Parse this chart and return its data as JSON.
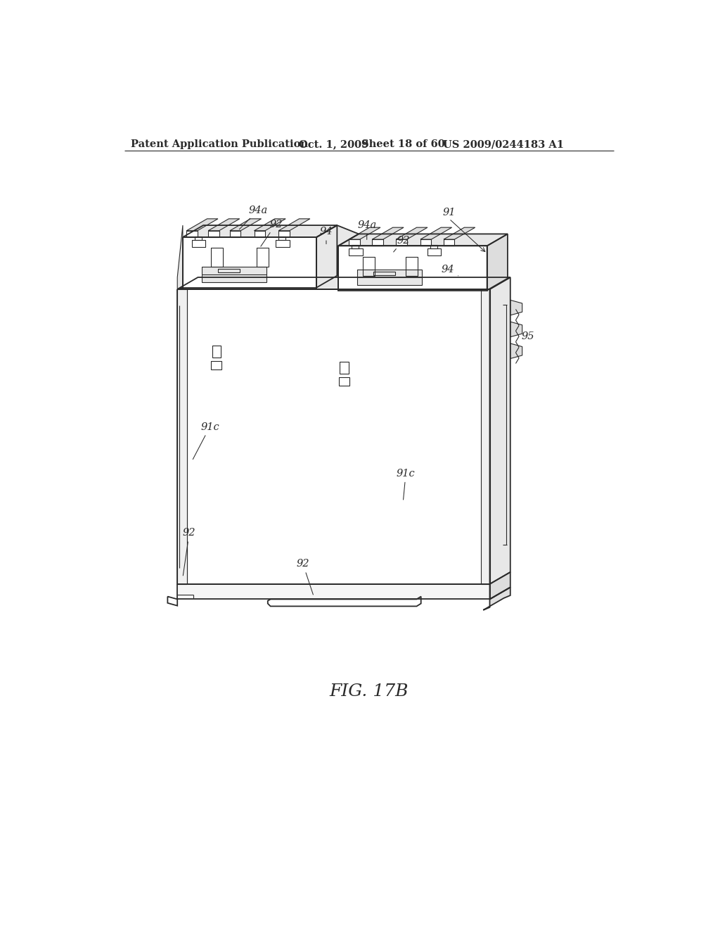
{
  "background_color": "#ffffff",
  "header_text": "Patent Application Publication",
  "header_date": "Oct. 1, 2009",
  "header_sheet": "Sheet 18 of 60",
  "header_patent": "US 2009/0244183 A1",
  "figure_label": "FIG. 17B",
  "line_color": "#2a2a2a",
  "lw": 1.3,
  "tlw": 0.8,
  "label_fontsize": 10.5,
  "header_fontsize": 10.5,
  "fig_label_fontsize": 18
}
